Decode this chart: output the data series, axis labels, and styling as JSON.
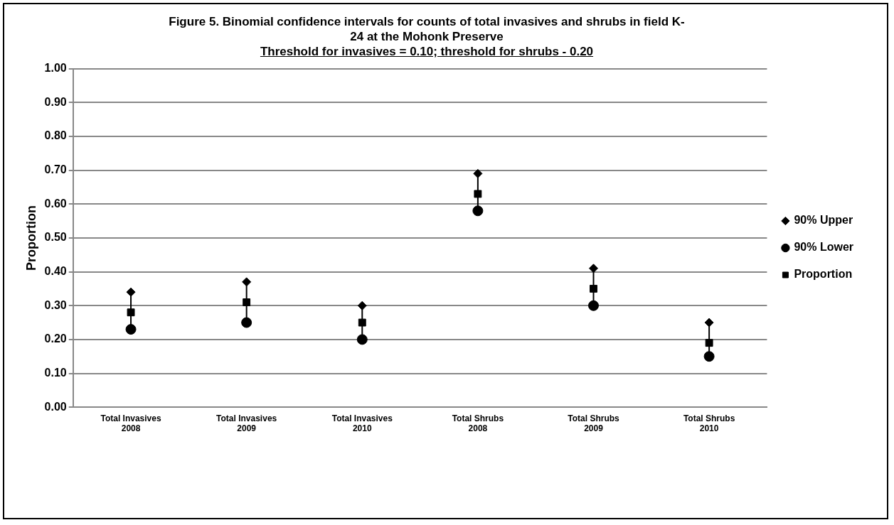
{
  "chart_data": {
    "type": "scatter",
    "title": "Figure 5. Binomial confidence intervals for counts of total invasives and shrubs in field K-24 at the Mohonk Preserve",
    "subtitle": "Threshold for invasives = 0.10; threshold for shrubs - 0.20",
    "ylabel": "Proportion",
    "categories": [
      "Total Invasives 2008",
      "Total Invasives 2009",
      "Total Invasives 2010",
      "Total Shrubs 2008",
      "Total Shrubs 2009",
      "Total Shrubs 2010"
    ],
    "series": [
      {
        "name": "90% Upper",
        "color": "#000000",
        "marker": "diamond",
        "values": [
          0.34,
          0.37,
          0.3,
          0.69,
          0.41,
          0.25
        ]
      },
      {
        "name": "90% Lower",
        "color": "#000000",
        "marker": "circle",
        "values": [
          0.23,
          0.25,
          0.2,
          0.58,
          0.3,
          0.15
        ]
      },
      {
        "name": "Proportion",
        "color": "#000000",
        "marker": "square",
        "values": [
          0.28,
          0.31,
          0.25,
          0.63,
          0.35,
          0.19
        ]
      }
    ],
    "ylim": [
      0,
      1
    ],
    "yticks": [
      {
        "value": 0,
        "label": "0.00"
      },
      {
        "value": 0.1,
        "label": "0.10"
      },
      {
        "value": 0.2,
        "label": "0.20"
      },
      {
        "value": 0.3,
        "label": "0.30"
      },
      {
        "value": 0.4,
        "label": "0.40"
      },
      {
        "value": 0.5,
        "label": "0.50"
      },
      {
        "value": 0.6,
        "label": "0.60"
      },
      {
        "value": 0.7,
        "label": "0.70"
      },
      {
        "value": 0.8,
        "label": "0.80"
      },
      {
        "value": 0.9,
        "label": "0.90"
      },
      {
        "value": 1,
        "label": "1.00"
      }
    ],
    "grid": "y",
    "legend": "right"
  }
}
